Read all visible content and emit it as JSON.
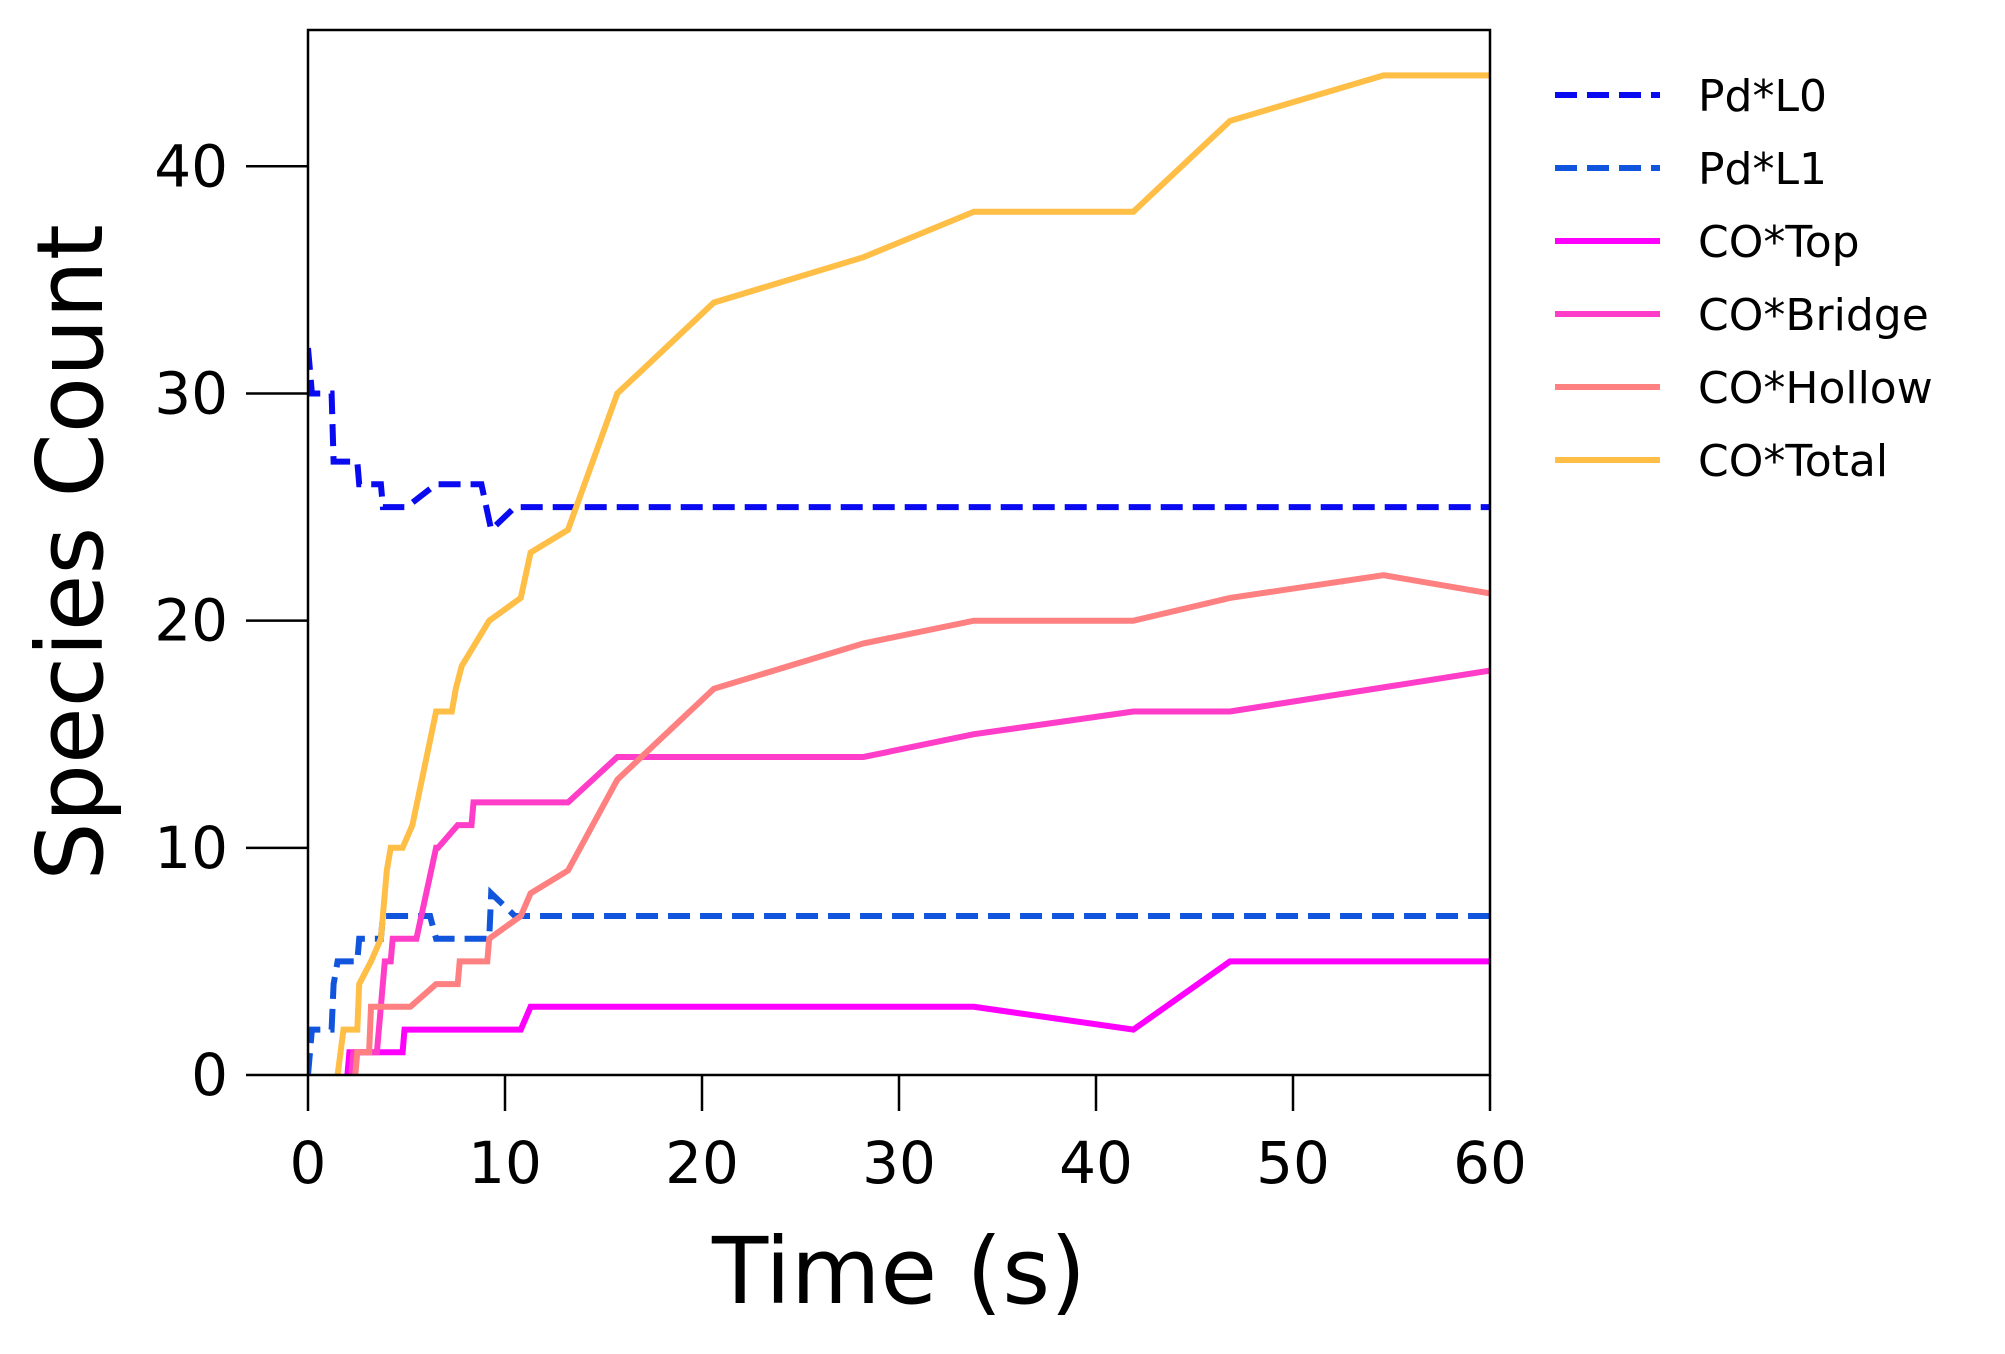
{
  "chart_data": {
    "type": "line",
    "xlabel": "Time (s)",
    "ylabel": "Species Count",
    "xlim": [
      0,
      60
    ],
    "ylim": [
      0,
      46
    ],
    "xticks": [
      "0",
      "10",
      "20",
      "30",
      "40",
      "50",
      "60"
    ],
    "yticks": [
      "0",
      "10",
      "20",
      "30",
      "40"
    ],
    "grid": false,
    "legend_position": "outside-right-top",
    "series": [
      {
        "name": "Pd*L0",
        "color": "#0a0af0",
        "dash": "dashed",
        "x": [
          0,
          0.1,
          0.2,
          0.3,
          1.2,
          1.3,
          2.5,
          2.6,
          3.7,
          3.8,
          5,
          6.5,
          8.8,
          9.3,
          10.5,
          60
        ],
        "y": [
          32,
          31,
          30,
          30,
          30,
          27,
          27,
          26,
          26,
          25,
          25,
          26,
          26,
          24,
          25,
          25
        ]
      },
      {
        "name": "Pd*L1",
        "color": "#1155dd",
        "dash": "dashed",
        "x": [
          0,
          0.1,
          0.2,
          1.2,
          1.3,
          1.5,
          2.5,
          2.6,
          3.7,
          3.8,
          6.2,
          6.5,
          9.2,
          9.3,
          10.5,
          60
        ],
        "y": [
          0,
          1,
          2,
          2,
          4,
          5,
          5,
          6,
          6,
          7,
          7,
          6,
          6,
          8,
          7,
          7
        ]
      },
      {
        "name": "CO*Top",
        "color": "#ff00ff",
        "dash": "solid",
        "x": [
          2.0,
          2.1,
          4.8,
          4.9,
          10.8,
          11.3,
          33.8,
          41.9,
          46.8,
          60
        ],
        "y": [
          0,
          1,
          1,
          2,
          2,
          3,
          3,
          2,
          5,
          5
        ]
      },
      {
        "name": "CO*Bridge",
        "color": "#ff3dc8",
        "dash": "solid",
        "x": [
          2.2,
          2.3,
          3.5,
          3.9,
          4.2,
          4.3,
          5.5,
          6.5,
          6.6,
          7.6,
          7.7,
          8.3,
          8.4,
          13.2,
          15.7,
          28.2,
          33.8,
          41.9,
          46.8,
          60
        ],
        "y": [
          0,
          1,
          1,
          5,
          5,
          6,
          6,
          10,
          10,
          11,
          11,
          11,
          12,
          12,
          14,
          14,
          15,
          16,
          16,
          17.8
        ]
      },
      {
        "name": "CO*Hollow",
        "color": "#ff8080",
        "dash": "solid",
        "x": [
          2.4,
          2.5,
          3.1,
          3.2,
          5.2,
          6.5,
          7.6,
          7.7,
          9.1,
          9.2,
          10.8,
          11.3,
          13.2,
          15.7,
          20.6,
          28.2,
          33.8,
          41.9,
          46.8,
          54.6,
          60
        ],
        "y": [
          0,
          1,
          1,
          3,
          3,
          4,
          4,
          5,
          5,
          6,
          7,
          8,
          9,
          13,
          17,
          19,
          20,
          20,
          21,
          22,
          21.2
        ]
      },
      {
        "name": "CO*Total",
        "color": "#ffbe46",
        "dash": "solid",
        "x": [
          1.5,
          1.8,
          2.5,
          2.6,
          3.2,
          3.7,
          4.0,
          4.2,
          4.8,
          5.3,
          6.5,
          7.3,
          7.5,
          7.8,
          8.5,
          9.2,
          10.8,
          11.3,
          13.2,
          15.7,
          20.6,
          28.2,
          33.8,
          41.9,
          46.8,
          54.6,
          60
        ],
        "y": [
          0,
          2,
          2,
          4,
          5,
          6,
          9,
          10,
          10,
          11,
          16,
          16,
          17,
          18,
          19,
          20,
          21,
          23,
          24,
          30,
          34,
          36,
          38,
          38,
          42,
          44,
          44
        ]
      }
    ]
  }
}
